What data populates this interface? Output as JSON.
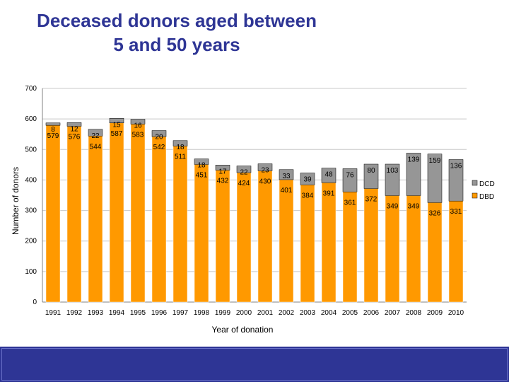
{
  "slide": {
    "title_line1": "Deceased donors aged between",
    "title_line2": "5 and 50 years"
  },
  "colors": {
    "title": "#2e3595",
    "footer": "#2e3595",
    "dbd": "#ff9900",
    "dcd": "#969696"
  },
  "chart_data": {
    "type": "bar",
    "stacked": true,
    "title": "",
    "xlabel": "Year of donation",
    "ylabel": "Number of donors",
    "ylim": [
      0,
      700
    ],
    "yticks": [
      0,
      100,
      200,
      300,
      400,
      500,
      600,
      700
    ],
    "grid": true,
    "legend_position": "right",
    "categories": [
      "1991",
      "1992",
      "1993",
      "1994",
      "1995",
      "1996",
      "1997",
      "1998",
      "1999",
      "2000",
      "2001",
      "2002",
      "2003",
      "2004",
      "2005",
      "2006",
      "2007",
      "2008",
      "2009",
      "2010"
    ],
    "series": [
      {
        "name": "DBD",
        "values": [
          579,
          576,
          544,
          587,
          583,
          542,
          511,
          451,
          432,
          424,
          430,
          401,
          384,
          391,
          361,
          372,
          349,
          349,
          326,
          331
        ]
      },
      {
        "name": "DCD",
        "values": [
          8,
          12,
          22,
          15,
          16,
          20,
          18,
          18,
          17,
          22,
          23,
          33,
          39,
          48,
          76,
          80,
          103,
          139,
          159,
          136
        ]
      }
    ]
  }
}
